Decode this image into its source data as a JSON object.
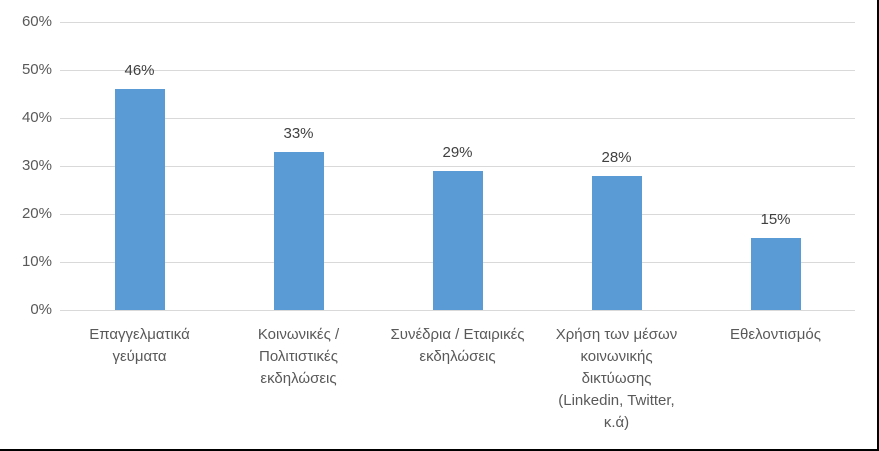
{
  "chart": {
    "background_color": "#FFFFFF",
    "bar_color": "#5B9BD5",
    "gridline_color": "#D9D9D9",
    "tick_label_color": "#595959",
    "value_label_color": "#404040",
    "category_label_color": "#595959",
    "border_color": "#000000"
  },
  "chart_data": {
    "type": "bar",
    "title": "",
    "xlabel": "",
    "ylabel": "",
    "categories": [
      "Επαγγελματικά γεύματα",
      "Κοινωνικές / Πολιτιστικές εκδηλώσεις",
      "Συνέδρια / Εταιρικές εκδηλώσεις",
      "Χρήση των μέσων κοινωνικής δικτύωσης (Linkedin, Twitter, κ.ά)",
      "Εθελοντισμός"
    ],
    "category_lines": [
      "Επαγγελματικά\nγεύματα",
      "Κοινωνικές /\nΠολιτιστικές\nεκδηλώσεις",
      "Συνέδρια / Εταιρικές\nεκδηλώσεις",
      "Χρήση των μέσων\nκοινωνικής\nδικτύωσης\n(Linkedin, Twitter,\nκ.ά)",
      "Εθελοντισμός"
    ],
    "values": [
      46,
      33,
      29,
      28,
      15
    ],
    "value_labels": [
      "46%",
      "33%",
      "29%",
      "28%",
      "15%"
    ],
    "ylim": [
      0,
      60
    ],
    "ytick_step": 10,
    "yticks": [
      "0%",
      "10%",
      "20%",
      "30%",
      "40%",
      "50%",
      "60%"
    ],
    "grid": "horizontal",
    "legend": "none"
  }
}
